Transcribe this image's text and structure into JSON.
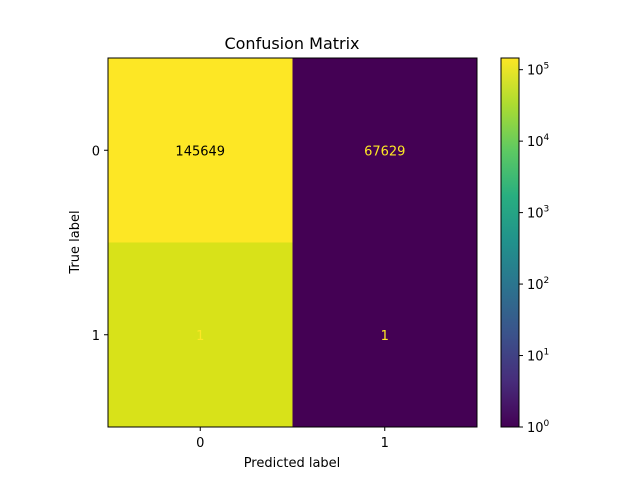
{
  "chart_data": {
    "type": "heatmap",
    "title": "Confusion Matrix",
    "xlabel": "Predicted label",
    "ylabel": "True label",
    "x_categories": [
      "0",
      "1"
    ],
    "y_categories": [
      "0",
      "1"
    ],
    "matrix": [
      [
        145649,
        67629
      ],
      [
        1,
        1
      ]
    ],
    "cell_labels": [
      [
        "145649",
        "67629"
      ],
      [
        "1",
        "1"
      ]
    ],
    "cell_colors": [
      [
        "#fde725",
        "#440154"
      ],
      [
        "#d8e219",
        "#440154"
      ]
    ],
    "cell_text_colors": [
      [
        "#000000",
        "#fde725"
      ],
      [
        "#fde725",
        "#fde725"
      ]
    ],
    "colorbar": {
      "scale": "log",
      "colormap": "viridis",
      "range": [
        1,
        145649
      ],
      "ticks": [
        {
          "value": 1,
          "label_base": "10",
          "label_exp": "0"
        },
        {
          "value": 10,
          "label_base": "10",
          "label_exp": "1"
        },
        {
          "value": 100,
          "label_base": "10",
          "label_exp": "2"
        },
        {
          "value": 1000,
          "label_base": "10",
          "label_exp": "3"
        },
        {
          "value": 10000,
          "label_base": "10",
          "label_exp": "4"
        },
        {
          "value": 100000,
          "label_base": "10",
          "label_exp": "5"
        }
      ]
    },
    "grid": false
  }
}
